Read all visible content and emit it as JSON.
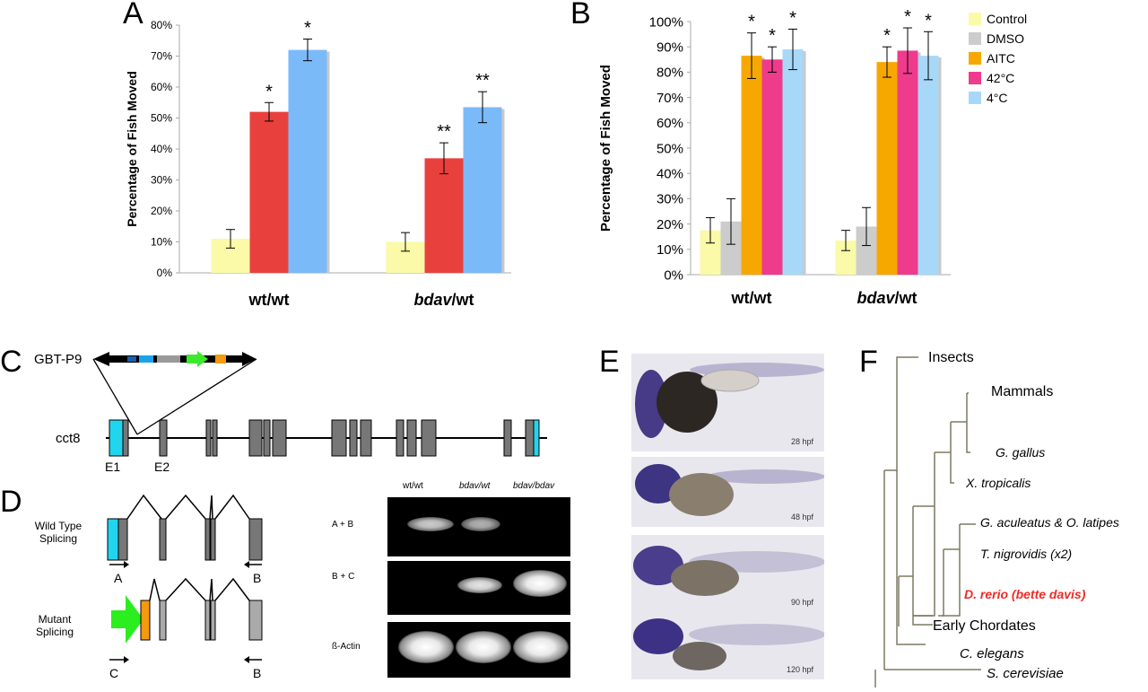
{
  "panels": {
    "a": "A",
    "b": "B",
    "c": "C",
    "d": "D",
    "e": "E",
    "f": "F"
  },
  "chart_data": [
    {
      "type": "bar",
      "panel": "A",
      "ylabel": "Percentage of Fish Moved",
      "ylim": [
        0,
        80
      ],
      "yticks": [
        "0%",
        "10%",
        "20%",
        "30%",
        "40%",
        "50%",
        "60%",
        "70%",
        "80%"
      ],
      "groups": [
        "wt/wt",
        "bdav/wt"
      ],
      "groups_display": [
        {
          "main": "wt",
          "rest": "/wt",
          "italic": false
        },
        {
          "main": "bdav",
          "rest": "/wt",
          "italic": true
        }
      ],
      "series": [
        {
          "values": [
            11,
            10
          ],
          "errors": [
            3,
            3
          ],
          "color": "#fafaa8",
          "annotations": [
            "",
            ""
          ]
        },
        {
          "values": [
            52,
            37
          ],
          "errors": [
            3,
            5
          ],
          "color": "#e8413d",
          "annotations": [
            "*",
            "**"
          ]
        },
        {
          "values": [
            72,
            53.5
          ],
          "errors": [
            3.5,
            5
          ],
          "color": "#7bbaf8",
          "annotations": [
            "*",
            "**"
          ]
        }
      ]
    },
    {
      "type": "bar",
      "panel": "B",
      "ylabel": "Percentage of Fish Moved",
      "ylim": [
        0,
        100
      ],
      "yticks": [
        "0%",
        "10%",
        "20%",
        "30%",
        "40%",
        "50%",
        "60%",
        "70%",
        "80%",
        "90%",
        "100%"
      ],
      "groups": [
        "wt/wt",
        "bdav/wt"
      ],
      "groups_display": [
        {
          "main": "wt",
          "rest": "/wt",
          "italic": false
        },
        {
          "main": "bdav",
          "rest": "/wt",
          "italic": true
        }
      ],
      "series": [
        {
          "name": "Control",
          "values": [
            17.5,
            13.5
          ],
          "errors": [
            5,
            4
          ],
          "color": "#fafaa8",
          "annotations": [
            "",
            ""
          ]
        },
        {
          "name": "DMSO",
          "values": [
            21,
            19
          ],
          "errors": [
            9,
            7.5
          ],
          "color": "#cccccc",
          "annotations": [
            "",
            ""
          ]
        },
        {
          "name": "AITC",
          "values": [
            86.5,
            84
          ],
          "errors": [
            9,
            6
          ],
          "color": "#f7a800",
          "annotations": [
            "*",
            "*"
          ]
        },
        {
          "name": "42oC",
          "values": [
            85,
            88.5
          ],
          "errors": [
            5,
            9
          ],
          "color": "#ef3b8c",
          "annotations": [
            "*",
            "*"
          ]
        },
        {
          "name": "4oC",
          "values": [
            89,
            86.5
          ],
          "errors": [
            8,
            9.5
          ],
          "color": "#a8d8f8",
          "annotations": [
            "*",
            "*"
          ]
        }
      ],
      "legend_placement": "top-right"
    }
  ],
  "panel_c": {
    "construct": "GBT-P9",
    "gene": "cct8",
    "exon1": "E1",
    "exon2": "E2"
  },
  "panel_d": {
    "wild_type_line1": "Wild Type",
    "wild_type_line2": "Splicing",
    "mutant_line1": "Mutant",
    "mutant_line2": "Splicing",
    "primer_a": "A",
    "primer_b": "B",
    "primer_b2": "B",
    "primer_c": "C",
    "gel_columns": [
      "wt/wt",
      "bdav/wt",
      "bdav/bdav"
    ],
    "gel_rows": [
      "A + B",
      "B + C",
      "ß-Actin"
    ]
  },
  "panel_e": {
    "stages": [
      "28 hpf",
      "48 hpf",
      "90 hpf",
      "120 hpf"
    ]
  },
  "panel_f": {
    "taxa": [
      "Insects",
      "Mammals",
      "G. gallus",
      "X. tropicalis",
      "G. aculeatus & O. latipes",
      "T. nigrovidis (x2)",
      "D. rerio  (bette davis)",
      "Early Chordates",
      "C. elegans",
      "S. cerevisiae"
    ],
    "highlight_color": "#ee2a24"
  }
}
